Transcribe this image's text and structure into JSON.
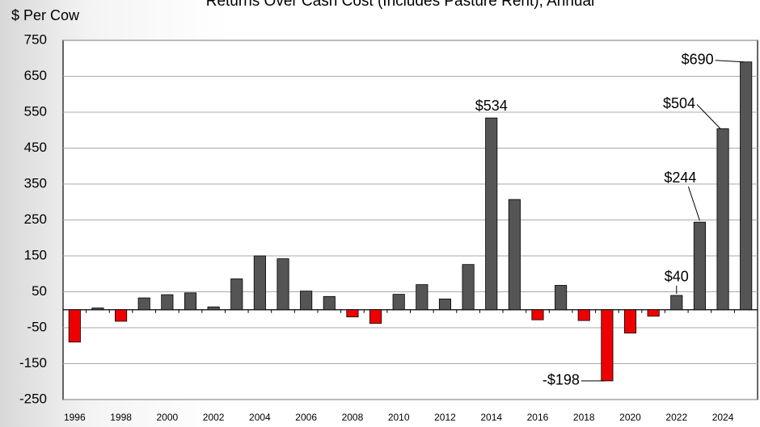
{
  "chart_data": {
    "type": "bar",
    "title": "Returns Over Cash Cost (Includes Pasture Rent), Annual",
    "y_label": "$ Per Cow",
    "categories": [
      "1996",
      null,
      "1998",
      null,
      "2000",
      null,
      "2002",
      null,
      "2004",
      null,
      "2006",
      null,
      "2008",
      null,
      "2010",
      null,
      "2012",
      null,
      "2014",
      null,
      "2016",
      null,
      "2018",
      null,
      "2020",
      null,
      "2022",
      null,
      "2024",
      null
    ],
    "values": [
      -90,
      5,
      -32,
      33,
      42,
      47,
      8,
      86,
      150,
      142,
      52,
      37,
      -20,
      -38,
      43,
      70,
      30,
      126,
      534,
      307,
      -28,
      68,
      -30,
      -198,
      -65,
      -18,
      40,
      244,
      504,
      690
    ],
    "value_labels": [
      null,
      null,
      null,
      null,
      null,
      null,
      null,
      null,
      null,
      null,
      null,
      null,
      null,
      null,
      null,
      null,
      null,
      null,
      "$534",
      null,
      null,
      null,
      null,
      "-$198",
      null,
      null,
      "$40",
      "$244",
      "$504",
      "$690"
    ],
    "positive_color": "#555555",
    "negative_color": "#ee0000",
    "ylim": [
      -250,
      750
    ],
    "yticks": [
      -250,
      -150,
      -50,
      50,
      150,
      250,
      350,
      450,
      550,
      650,
      750
    ],
    "grid": true
  }
}
